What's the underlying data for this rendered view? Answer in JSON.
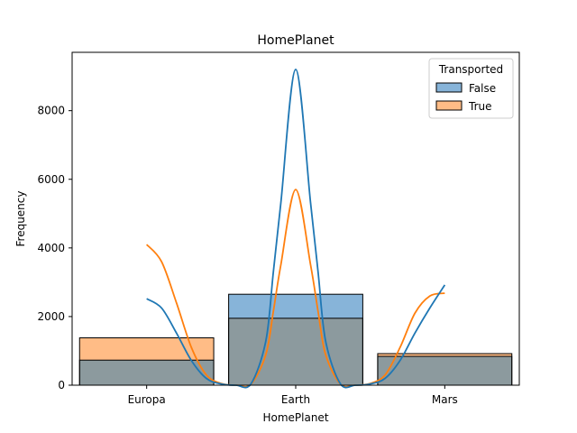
{
  "chart_data": {
    "type": "histogram",
    "title": "HomePlanet",
    "xlabel": "HomePlanet",
    "ylabel": "Frequency",
    "categories": [
      "Europa",
      "Earth",
      "Mars"
    ],
    "ylim": [
      0,
      9700
    ],
    "yticks": [
      0,
      2000,
      4000,
      6000,
      8000
    ],
    "ytick_labels": [
      "0",
      "2000",
      "4000",
      "6000",
      "8000"
    ],
    "grid": false,
    "legend": {
      "title": "Transported",
      "placement": "top-right"
    },
    "series": [
      {
        "name": "False",
        "color": "#1f77b4",
        "fill": "#87b4d9",
        "values": [
          730,
          2650,
          840
        ],
        "kde": {
          "x": [
            0,
            0.1,
            0.2,
            0.3,
            0.4,
            0.5,
            0.6,
            0.7,
            0.8,
            0.85,
            0.9,
            1.0,
            1.1,
            1.15,
            1.2,
            1.3,
            1.4,
            1.5,
            1.6,
            1.7,
            1.8,
            1.9,
            2.0
          ],
          "y": [
            2520,
            2250,
            1520,
            720,
            200,
            35,
            0,
            40,
            1300,
            3300,
            5300,
            9200,
            5300,
            3300,
            1300,
            40,
            0,
            35,
            200,
            720,
            1520,
            2250,
            2920
          ]
        }
      },
      {
        "name": "True",
        "color": "#ff7f0e",
        "fill": "#ffbc86",
        "values": [
          1380,
          1950,
          920
        ],
        "kde": {
          "x": [
            0,
            0.1,
            0.2,
            0.3,
            0.4,
            0.5,
            0.6,
            0.7,
            0.8,
            0.85,
            0.9,
            1.0,
            1.1,
            1.15,
            1.2,
            1.3,
            1.4,
            1.5,
            1.6,
            1.7,
            1.8,
            1.9,
            2.0
          ],
          "y": [
            4100,
            3600,
            2400,
            1100,
            300,
            50,
            0,
            30,
            900,
            2150,
            3500,
            5700,
            3500,
            2150,
            900,
            30,
            0,
            50,
            300,
            1100,
            2100,
            2600,
            2680
          ]
        }
      }
    ],
    "overlap_color": "#8c9a9e"
  }
}
